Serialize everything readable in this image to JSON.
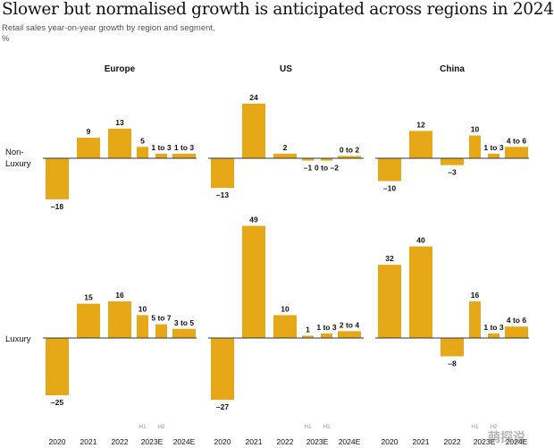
{
  "title": "Slower but normalised growth is anticipated across regions in 2024",
  "subtitle": "Retail sales year-on-year growth by region and segment,",
  "unit": "%",
  "watermark": "萌探说",
  "colors": {
    "bar": "#e6a817",
    "axis": "#333333"
  },
  "chart_data": {
    "type": "bar",
    "categories": [
      "2020",
      "2021",
      "2022",
      "2023E",
      "2024E"
    ],
    "period_labels": [
      "H1",
      "H2"
    ],
    "regions": [
      "Europe",
      "US",
      "China"
    ],
    "segments": [
      "Non-Luxury",
      "Luxury"
    ],
    "panels": [
      {
        "region": "Europe",
        "segment": "Non-Luxury",
        "bars": [
          {
            "label": "2020",
            "value": -18,
            "text": "–18"
          },
          {
            "label": "2021",
            "value": 9,
            "text": "9"
          },
          {
            "label": "2022",
            "value": 13,
            "text": "13"
          },
          {
            "label": "2023E H1",
            "value": 5,
            "text": "5"
          },
          {
            "label": "2023E H2",
            "value": 2,
            "text": "1 to 3"
          },
          {
            "label": "2024E",
            "value": 2,
            "text": "1 to 3"
          }
        ]
      },
      {
        "region": "US",
        "segment": "Non-Luxury",
        "bars": [
          {
            "label": "2020",
            "value": -13,
            "text": "–13"
          },
          {
            "label": "2021",
            "value": 24,
            "text": "24"
          },
          {
            "label": "2022",
            "value": 2,
            "text": "2"
          },
          {
            "label": "2023E H1",
            "value": -1,
            "text": "–1"
          },
          {
            "label": "2023E H2",
            "value": -1,
            "text": "0 to –2"
          },
          {
            "label": "2024E",
            "value": 1,
            "text": "0 to 2"
          }
        ]
      },
      {
        "region": "China",
        "segment": "Non-Luxury",
        "bars": [
          {
            "label": "2020",
            "value": -10,
            "text": "–10"
          },
          {
            "label": "2021",
            "value": 12,
            "text": "12"
          },
          {
            "label": "2022",
            "value": -3,
            "text": "–3"
          },
          {
            "label": "2023E H1",
            "value": 10,
            "text": "10"
          },
          {
            "label": "2023E H2",
            "value": 2,
            "text": "1 to 3"
          },
          {
            "label": "2024E",
            "value": 5,
            "text": "4 to 6"
          }
        ]
      },
      {
        "region": "Europe",
        "segment": "Luxury",
        "bars": [
          {
            "label": "2020",
            "value": -25,
            "text": "–25"
          },
          {
            "label": "2021",
            "value": 15,
            "text": "15"
          },
          {
            "label": "2022",
            "value": 16,
            "text": "16"
          },
          {
            "label": "2023E H1",
            "value": 10,
            "text": "10"
          },
          {
            "label": "2023E H2",
            "value": 6,
            "text": "5 to 7"
          },
          {
            "label": "2024E",
            "value": 4,
            "text": "3 to 5"
          }
        ]
      },
      {
        "region": "US",
        "segment": "Luxury",
        "bars": [
          {
            "label": "2020",
            "value": -27,
            "text": "–27"
          },
          {
            "label": "2021",
            "value": 49,
            "text": "49"
          },
          {
            "label": "2022",
            "value": 10,
            "text": "10"
          },
          {
            "label": "2023E H1",
            "value": 1,
            "text": "1"
          },
          {
            "label": "2023E H2",
            "value": 2,
            "text": "1 to 3"
          },
          {
            "label": "2024E",
            "value": 3,
            "text": "2 to 4"
          }
        ]
      },
      {
        "region": "China",
        "segment": "Luxury",
        "bars": [
          {
            "label": "2020",
            "value": 32,
            "text": "32"
          },
          {
            "label": "2021",
            "value": 40,
            "text": "40"
          },
          {
            "label": "2022",
            "value": -8,
            "text": "–8"
          },
          {
            "label": "2023E H1",
            "value": 16,
            "text": "16"
          },
          {
            "label": "2023E H2",
            "value": 2,
            "text": "1 to 3"
          },
          {
            "label": "2024E",
            "value": 5,
            "text": "4 to 6"
          }
        ]
      }
    ]
  }
}
